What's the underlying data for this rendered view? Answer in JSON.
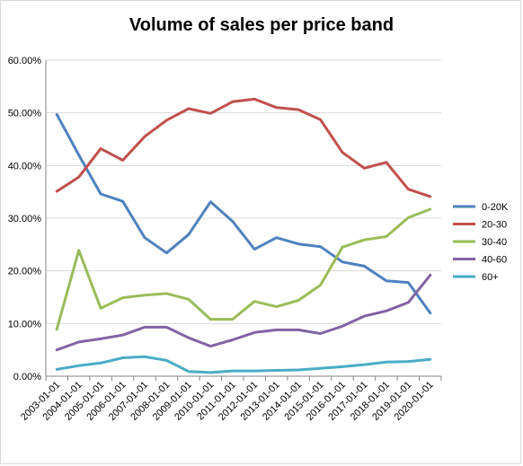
{
  "chart_data": {
    "type": "line",
    "title": "Volume of sales per price band",
    "xlabel": "",
    "ylabel": "",
    "ylim": [
      0,
      0.6
    ],
    "y_ticks": [
      "0.00%",
      "10.00%",
      "20.00%",
      "30.00%",
      "40.00%",
      "50.00%",
      "60.00%"
    ],
    "grid": "horizontal",
    "legend_position": "right",
    "x": [
      "2003-01-01",
      "2004-01-01",
      "2005-01-01",
      "2006-01-01",
      "2007-01-01",
      "2008-01-01",
      "2009-01-01",
      "2010-01-01",
      "2011-01-01",
      "2012-01-01",
      "2013-01-01",
      "2014-01-01",
      "2015-01-01",
      "2016-01-01",
      "2017-01-01",
      "2018-01-01",
      "2019-01-01",
      "2020-01-01"
    ],
    "series": [
      {
        "name": "0-20K",
        "color": "#4F81BD",
        "values": [
          0.497,
          0.42,
          0.346,
          0.332,
          0.263,
          0.234,
          0.269,
          0.331,
          0.294,
          0.241,
          0.263,
          0.251,
          0.246,
          0.217,
          0.209,
          0.181,
          0.178,
          0.12
        ]
      },
      {
        "name": "20-30",
        "color": "#C0504D",
        "values": [
          0.351,
          0.378,
          0.432,
          0.41,
          0.455,
          0.486,
          0.508,
          0.499,
          0.521,
          0.526,
          0.51,
          0.506,
          0.487,
          0.425,
          0.395,
          0.406,
          0.355,
          0.341
        ]
      },
      {
        "name": "30-40",
        "color": "#9BBB59",
        "values": [
          0.089,
          0.239,
          0.129,
          0.149,
          0.154,
          0.157,
          0.146,
          0.108,
          0.108,
          0.142,
          0.132,
          0.144,
          0.173,
          0.245,
          0.259,
          0.265,
          0.301,
          0.317
        ]
      },
      {
        "name": "40-60",
        "color": "#8064A2",
        "values": [
          0.05,
          0.065,
          0.071,
          0.078,
          0.093,
          0.093,
          0.073,
          0.057,
          0.069,
          0.083,
          0.088,
          0.088,
          0.081,
          0.095,
          0.114,
          0.124,
          0.14,
          0.192
        ]
      },
      {
        "name": "60+",
        "color": "#4BACC6",
        "values": [
          0.013,
          0.02,
          0.025,
          0.035,
          0.037,
          0.03,
          0.009,
          0.007,
          0.01,
          0.01,
          0.011,
          0.012,
          0.015,
          0.018,
          0.022,
          0.027,
          0.028,
          0.032
        ]
      }
    ]
  }
}
